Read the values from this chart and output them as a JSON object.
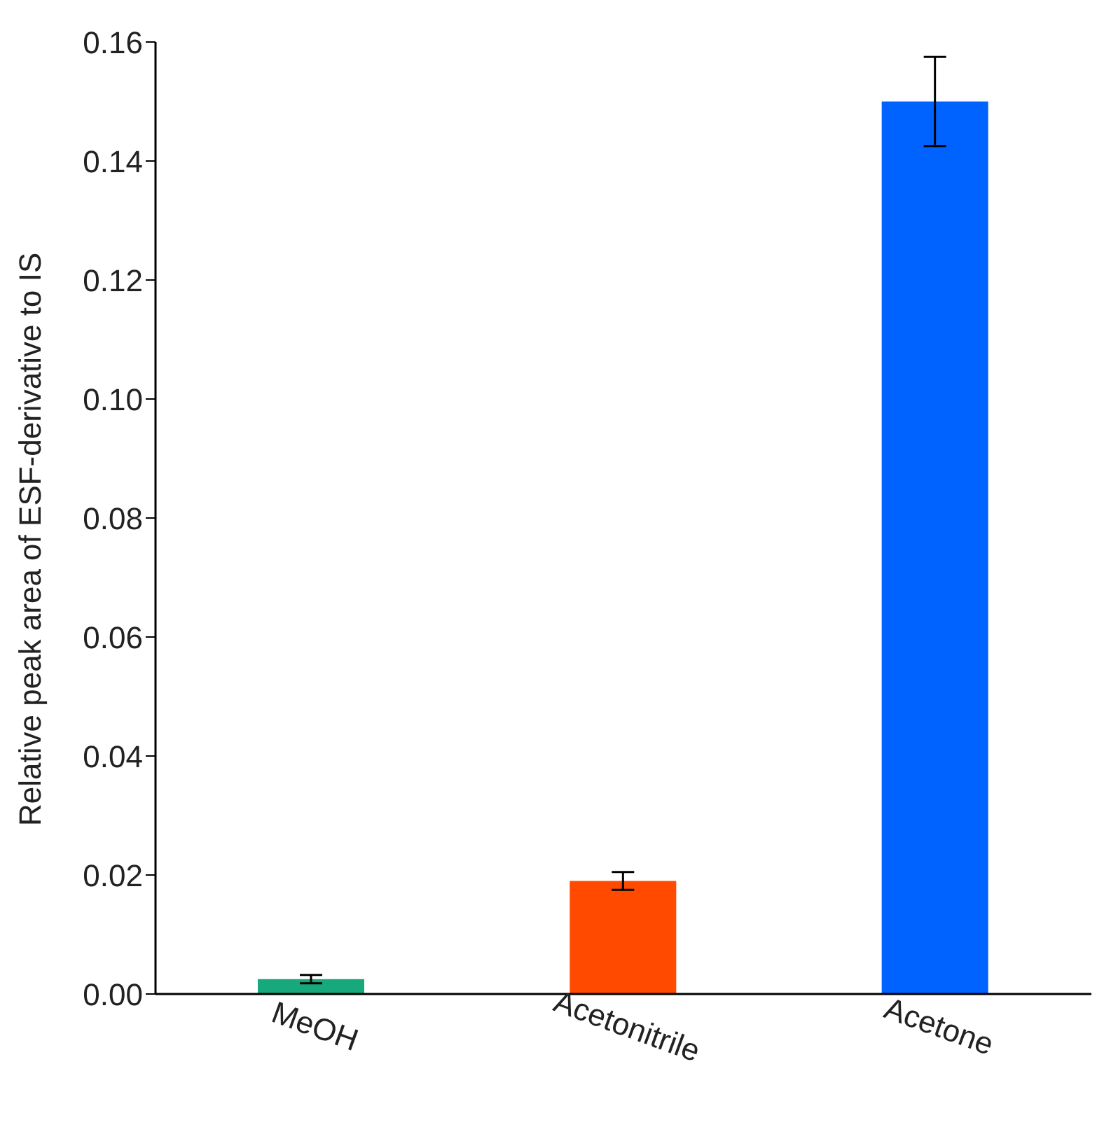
{
  "chart_data": {
    "type": "bar",
    "ylabel": "Relative peak area of ESF-derivative to IS",
    "categories": [
      "MeOH",
      "Acetonitrile",
      "Acetone"
    ],
    "values": [
      0.0025,
      0.019,
      0.15
    ],
    "colors": [
      "#17a87b",
      "#ff4a00",
      "#0062ff"
    ],
    "errors": [
      0.0007,
      0.0015,
      0.0075
    ],
    "ylim": [
      0,
      0.16
    ],
    "yticks": [
      {
        "value": 0,
        "label": "0.00"
      },
      {
        "value": 0.02,
        "label": "0.02"
      },
      {
        "value": 0.04,
        "label": "0.04"
      },
      {
        "value": 0.06,
        "label": "0.06"
      },
      {
        "value": 0.08,
        "label": "0.08"
      },
      {
        "value": 0.1,
        "label": "0.10"
      },
      {
        "value": 0.12,
        "label": "0.12"
      },
      {
        "value": 0.14,
        "label": "0.14"
      },
      {
        "value": 0.16,
        "label": "0.16"
      }
    ],
    "grid": false,
    "legend": false
  }
}
